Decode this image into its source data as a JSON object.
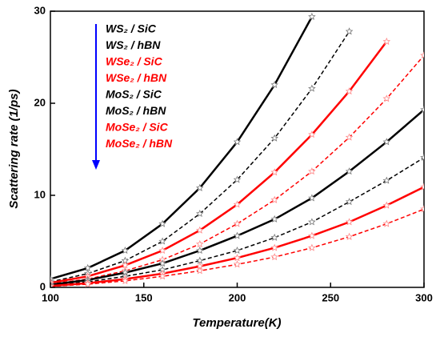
{
  "chart_data": {
    "type": "line",
    "xlabel": "Temperature(K)",
    "ylabel": "Scattering rate (1/ps)",
    "x": [
      100,
      120,
      140,
      160,
      180,
      200,
      220,
      240,
      260,
      280,
      300
    ],
    "xlim": [
      100,
      300
    ],
    "xticks": [
      100,
      150,
      200,
      250,
      300
    ],
    "ylim": [
      0,
      30
    ],
    "yticks": [
      0,
      10,
      20,
      30
    ],
    "series": [
      {
        "name": "WS₂ / SiC",
        "color": "#000000",
        "dashed": false,
        "values": [
          0.9,
          2.1,
          4.0,
          6.9,
          10.8,
          15.8,
          22.0,
          29.4,
          null,
          null,
          null
        ]
      },
      {
        "name": "WS₂ / hBN",
        "color": "#000000",
        "dashed": true,
        "values": [
          0.6,
          1.5,
          2.9,
          5.0,
          8.0,
          11.7,
          16.2,
          21.6,
          27.8,
          null,
          null
        ]
      },
      {
        "name": "WSe₂ / SiC",
        "color": "#ff0000",
        "dashed": false,
        "values": [
          0.5,
          1.2,
          2.4,
          4.0,
          6.2,
          9.0,
          12.5,
          16.6,
          21.3,
          26.7,
          null
        ]
      },
      {
        "name": "WSe₂ / hBN",
        "color": "#ff0000",
        "dashed": true,
        "values": [
          0.4,
          0.9,
          1.8,
          3.0,
          4.7,
          6.9,
          9.5,
          12.6,
          16.3,
          20.5,
          25.2
        ]
      },
      {
        "name": "MoS₂ / SiC",
        "color": "#000000",
        "dashed": false,
        "values": [
          0.3,
          0.8,
          1.6,
          2.6,
          4.0,
          5.6,
          7.4,
          9.7,
          12.6,
          15.8,
          19.3
        ]
      },
      {
        "name": "MoS₂ / hBN",
        "color": "#000000",
        "dashed": true,
        "values": [
          0.2,
          0.6,
          1.2,
          1.9,
          2.9,
          4.0,
          5.4,
          7.1,
          9.3,
          11.6,
          14.1
        ]
      },
      {
        "name": "MoSe₂ / SiC",
        "color": "#ff0000",
        "dashed": false,
        "values": [
          0.15,
          0.45,
          0.9,
          1.5,
          2.3,
          3.2,
          4.3,
          5.6,
          7.1,
          8.9,
          10.9
        ]
      },
      {
        "name": "MoSe₂ / hBN",
        "color": "#ff0000",
        "dashed": true,
        "values": [
          0.1,
          0.35,
          0.7,
          1.2,
          1.8,
          2.5,
          3.3,
          4.3,
          5.5,
          6.9,
          8.5
        ]
      }
    ]
  }
}
